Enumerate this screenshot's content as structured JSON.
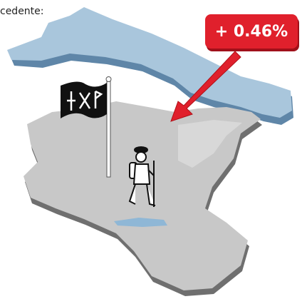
{
  "header_text": "cedente:",
  "callout": "+ 0.46%"
}
